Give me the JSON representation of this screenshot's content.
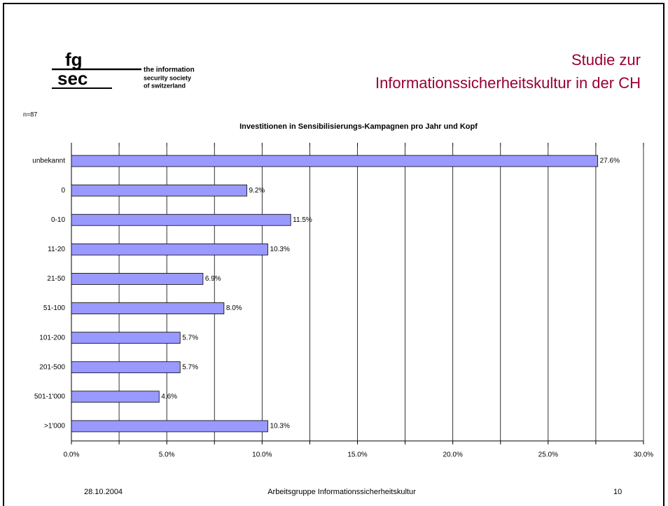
{
  "logo": {
    "mark_top": "fg",
    "mark_bottom": "sec",
    "line1": "the information",
    "line2": "security society",
    "line3": "of switzerland"
  },
  "header": {
    "title_line1": "Studie zur",
    "title_line2": "Informationssicherheitskultur in der CH"
  },
  "sample": "n=87",
  "chart_data": {
    "type": "hbar",
    "title": "Investitionen in Sensibilisierungs-Kampagnen pro Jahr und Kopf",
    "categories": [
      "unbekannt",
      "0",
      "0-10",
      "11-20",
      "21-50",
      "51-100",
      "101-200",
      "201-500",
      "501-1'000",
      ">1'000"
    ],
    "values": [
      27.6,
      9.2,
      11.5,
      10.3,
      6.9,
      8.0,
      5.7,
      5.7,
      4.6,
      10.3
    ],
    "value_labels": [
      "27.6%",
      "9.2%",
      "11.5%",
      "10.3%",
      "6.9%",
      "8.0%",
      "5.7%",
      "5.7%",
      "4.6%",
      "10.3%"
    ],
    "color": "#9999ff",
    "xlim": [
      0,
      30
    ],
    "xticks": [
      {
        "value": 0,
        "label": "0.0%"
      },
      {
        "value": 5,
        "label": "5.0%"
      },
      {
        "value": 10,
        "label": "10.0%"
      },
      {
        "value": 15,
        "label": "15.0%"
      },
      {
        "value": 20,
        "label": "20.0%"
      },
      {
        "value": 25,
        "label": "25.0%"
      },
      {
        "value": 30,
        "label": "30.0%"
      }
    ],
    "xminorticks": [
      2.5,
      7.5,
      12.5,
      17.5,
      22.5,
      27.5
    ],
    "grid": true
  },
  "footer": {
    "date": "28.10.2004",
    "center": "Arbeitsgruppe Informationssicherheitskultur",
    "page": "10"
  }
}
